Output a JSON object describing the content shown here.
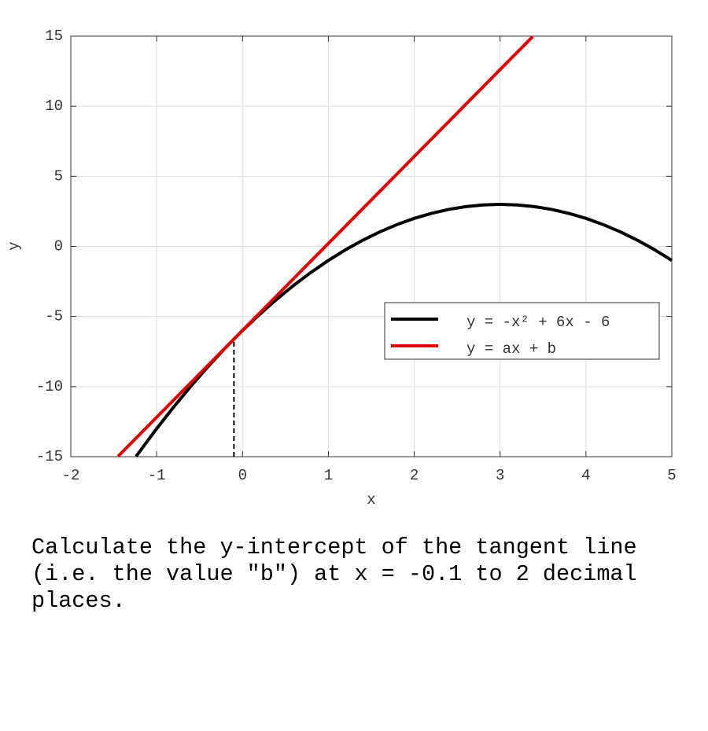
{
  "chart_data": {
    "type": "line",
    "xlabel": "x",
    "ylabel": "y",
    "xlim": [
      -2,
      5
    ],
    "ylim": [
      -15,
      15
    ],
    "xticks": [
      -2,
      -1,
      0,
      1,
      2,
      3,
      4,
      5
    ],
    "yticks": [
      -15,
      -10,
      -5,
      0,
      5,
      10,
      15
    ],
    "grid": true,
    "legend": "lower right",
    "series": [
      {
        "name": "y = -x² + 6x - 6",
        "color": "#000000",
        "x": [
          -1.24,
          -1.0,
          -0.8,
          -0.6,
          -0.4,
          -0.2,
          0,
          0.2,
          0.4,
          0.6,
          0.8,
          1.0,
          1.2,
          1.4,
          1.6,
          1.8,
          2.0,
          2.2,
          2.4,
          2.6,
          2.8,
          3.0,
          3.2,
          3.4,
          3.6,
          3.8,
          4.0,
          4.2,
          4.4,
          4.6,
          4.8,
          5.0
        ],
        "values": [
          -14.98,
          -13,
          -11.44,
          -9.96,
          -8.56,
          -7.24,
          -6,
          -4.84,
          -3.76,
          -2.76,
          -1.84,
          -1,
          -0.24,
          0.44,
          1.04,
          1.56,
          2,
          2.36,
          2.64,
          2.84,
          2.96,
          3,
          2.96,
          2.84,
          2.64,
          2.36,
          2,
          1.56,
          1.04,
          0.44,
          -0.24,
          -1
        ]
      },
      {
        "name": "y = ax + b",
        "color": "#e00000",
        "x": [
          -1.45,
          3.38
        ],
        "values": [
          -14.98,
          14.97
        ]
      }
    ],
    "marker": {
      "x": -0.1,
      "y": -6.61
    },
    "question": "Calculate the y-intercept of the tangent line (i.e. the value \"b\") at x = -0.1 to 2 decimal places."
  }
}
